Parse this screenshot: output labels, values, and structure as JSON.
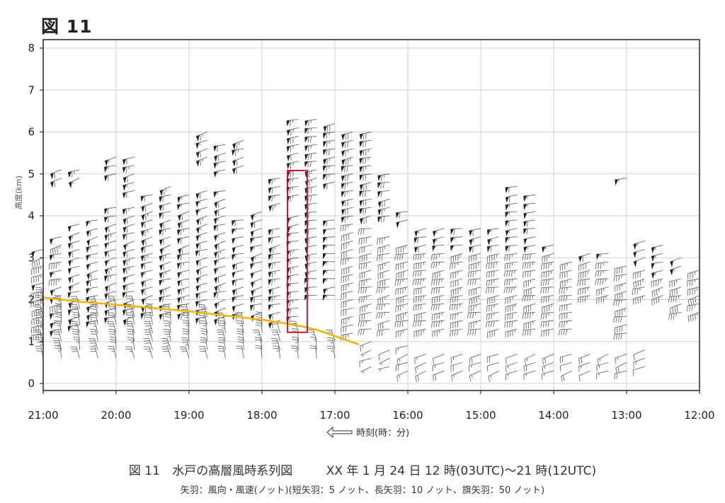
{
  "figure_label": "図 11",
  "caption": {
    "number": "図 11",
    "title": "水戸の高層風時系列図",
    "period": "XX 年 1 月 24 日 12 時(03UTC)〜21 時(12UTC)",
    "legend": "矢羽：風向・風速(ノット)(短矢羽：5 ノット、長矢羽：10 ノット、旗矢羽：50 ノット)"
  },
  "chart_data": {
    "type": "wind-barb time-height series",
    "title": "",
    "xlabel": "時刻(時：分)",
    "ylabel": "高度(km)",
    "x_ticks": [
      "21:00",
      "20:00",
      "19:00",
      "18:00",
      "17:00",
      "16:00",
      "15:00",
      "14:00",
      "13:00",
      "12:00"
    ],
    "x_range_hours": [
      21,
      12
    ],
    "y_ticks": [
      0,
      1,
      2,
      3,
      4,
      5,
      6,
      7,
      8
    ],
    "ylim": [
      0,
      8
    ],
    "grid": true,
    "barb_units": "knot",
    "series": [
      {
        "kind": "barbs",
        "region": "upper_westerly",
        "profiles": [
          {
            "time": 21.0,
            "alt_min": 1.2,
            "alt_max": 3.3,
            "dir": 255,
            "spd": 45
          },
          {
            "time": 20.75,
            "alt_min": 1.3,
            "alt_max": 3.6,
            "dir": 255,
            "spd": 50
          },
          {
            "time": 20.5,
            "alt_min": 1.4,
            "alt_max": 3.9,
            "dir": 255,
            "spd": 55
          },
          {
            "time": 20.25,
            "alt_min": 1.5,
            "alt_max": 4.0,
            "dir": 255,
            "spd": 55
          },
          {
            "time": 20.0,
            "alt_min": 1.6,
            "alt_max": 4.2,
            "dir": 255,
            "spd": 60
          },
          {
            "time": 19.75,
            "alt_min": 1.6,
            "alt_max": 4.3,
            "dir": 255,
            "spd": 60
          },
          {
            "time": 19.5,
            "alt_min": 1.7,
            "alt_max": 4.6,
            "dir": 255,
            "spd": 60
          },
          {
            "time": 19.25,
            "alt_min": 1.7,
            "alt_max": 4.7,
            "dir": 255,
            "spd": 60
          },
          {
            "time": 19.0,
            "alt_min": 1.7,
            "alt_max": 4.6,
            "dir": 255,
            "spd": 60
          },
          {
            "time": 18.75,
            "alt_min": 1.6,
            "alt_max": 4.6,
            "dir": 255,
            "spd": 60
          },
          {
            "time": 18.5,
            "alt_min": 1.6,
            "alt_max": 4.6,
            "dir": 255,
            "spd": 60
          },
          {
            "time": 18.25,
            "alt_min": 1.7,
            "alt_max": 4.0,
            "dir": 260,
            "spd": 55
          },
          {
            "time": 18.0,
            "alt_min": 1.7,
            "alt_max": 4.1,
            "dir": 255,
            "spd": 55
          },
          {
            "time": 17.75,
            "alt_min": 1.5,
            "alt_max": 3.8,
            "dir": 260,
            "spd": 60
          },
          {
            "time": 17.5,
            "alt_min": 1.6,
            "alt_max": 4.0,
            "dir": 260,
            "spd": 60
          },
          {
            "time": 17.25,
            "alt_min": 2.1,
            "alt_max": 4.3,
            "dir": 265,
            "spd": 55
          },
          {
            "time": 17.0,
            "alt_min": 2.1,
            "alt_max": 4.0,
            "dir": 265,
            "spd": 55
          }
        ]
      },
      {
        "kind": "barbs",
        "region": "lower_northerly",
        "profiles": [
          {
            "time": 21.0,
            "alt_min": 0.6,
            "alt_max": 2.0,
            "dir": 350,
            "spd": 30
          },
          {
            "time": 20.75,
            "alt_min": 0.6,
            "alt_max": 1.9,
            "dir": 350,
            "spd": 30
          },
          {
            "time": 20.5,
            "alt_min": 0.6,
            "alt_max": 1.9,
            "dir": 350,
            "spd": 30
          },
          {
            "time": 20.25,
            "alt_min": 0.6,
            "alt_max": 1.9,
            "dir": 350,
            "spd": 30
          },
          {
            "time": 20.0,
            "alt_min": 0.6,
            "alt_max": 1.8,
            "dir": 350,
            "spd": 30
          },
          {
            "time": 19.75,
            "alt_min": 0.6,
            "alt_max": 1.8,
            "dir": 350,
            "spd": 30
          },
          {
            "time": 19.5,
            "alt_min": 0.6,
            "alt_max": 1.7,
            "dir": 350,
            "spd": 30
          },
          {
            "time": 19.25,
            "alt_min": 0.6,
            "alt_max": 1.7,
            "dir": 350,
            "spd": 30
          },
          {
            "time": 19.0,
            "alt_min": 0.6,
            "alt_max": 1.6,
            "dir": 350,
            "spd": 30
          },
          {
            "time": 18.75,
            "alt_min": 0.6,
            "alt_max": 1.6,
            "dir": 350,
            "spd": 30
          },
          {
            "time": 18.5,
            "alt_min": 0.6,
            "alt_max": 1.5,
            "dir": 350,
            "spd": 30
          },
          {
            "time": 18.25,
            "alt_min": 0.6,
            "alt_max": 1.5,
            "dir": 350,
            "spd": 25
          },
          {
            "time": 18.0,
            "alt_min": 0.6,
            "alt_max": 1.4,
            "dir": 350,
            "spd": 25
          },
          {
            "time": 17.75,
            "alt_min": 0.6,
            "alt_max": 1.3,
            "dir": 350,
            "spd": 25
          },
          {
            "time": 17.5,
            "alt_min": 0.6,
            "alt_max": 1.2,
            "dir": 350,
            "spd": 25
          },
          {
            "time": 17.25,
            "alt_min": 0.6,
            "alt_max": 1.1,
            "dir": 350,
            "spd": 20
          },
          {
            "time": 17.0,
            "alt_min": 0.6,
            "alt_max": 1.0,
            "dir": 350,
            "spd": 20
          }
        ]
      },
      {
        "kind": "barbs",
        "region": "jet_strong_upper_left",
        "profiles": [
          {
            "time": 20.75,
            "alt_min": 4.9,
            "alt_max": 5.1,
            "dir": 250,
            "spd": 60
          },
          {
            "time": 20.5,
            "alt_min": 4.9,
            "alt_max": 5.2,
            "dir": 250,
            "spd": 60
          },
          {
            "time": 20.0,
            "alt_min": 5.0,
            "alt_max": 5.5,
            "dir": 255,
            "spd": 60
          },
          {
            "time": 19.75,
            "alt_min": 4.6,
            "alt_max": 5.4,
            "dir": 255,
            "spd": 60
          },
          {
            "time": 18.75,
            "alt_min": 5.4,
            "alt_max": 6.1,
            "dir": 255,
            "spd": 60
          },
          {
            "time": 18.5,
            "alt_min": 5.1,
            "alt_max": 5.8,
            "dir": 255,
            "spd": 60
          },
          {
            "time": 18.25,
            "alt_min": 5.2,
            "alt_max": 5.8,
            "dir": 255,
            "spd": 60
          },
          {
            "time": 17.75,
            "alt_min": 4.3,
            "alt_max": 5.0,
            "dir": 260,
            "spd": 65
          },
          {
            "time": 17.5,
            "alt_min": 4.5,
            "alt_max": 6.3,
            "dir": 260,
            "spd": 65
          },
          {
            "time": 17.25,
            "alt_min": 4.5,
            "alt_max": 6.4,
            "dir": 260,
            "spd": 65
          },
          {
            "time": 17.0,
            "alt_min": 4.8,
            "alt_max": 6.3,
            "dir": 260,
            "spd": 65
          },
          {
            "time": 16.75,
            "alt_min": 4.0,
            "alt_max": 6.1,
            "dir": 260,
            "spd": 70
          },
          {
            "time": 16.5,
            "alt_min": 4.0,
            "alt_max": 6.0,
            "dir": 260,
            "spd": 70
          },
          {
            "time": 16.25,
            "alt_min": 4.0,
            "alt_max": 5.0,
            "dir": 260,
            "spd": 65
          },
          {
            "time": 16.0,
            "alt_min": 3.9,
            "alt_max": 4.1,
            "dir": 260,
            "spd": 55
          }
        ]
      },
      {
        "kind": "barbs",
        "region": "jet_strong_right",
        "profiles": [
          {
            "time": 15.75,
            "alt_min": 3.3,
            "alt_max": 3.7,
            "dir": 260,
            "spd": 55
          },
          {
            "time": 15.5,
            "alt_min": 3.3,
            "alt_max": 3.7,
            "dir": 260,
            "spd": 55
          },
          {
            "time": 15.25,
            "alt_min": 3.3,
            "alt_max": 3.7,
            "dir": 260,
            "spd": 55
          },
          {
            "time": 15.0,
            "alt_min": 3.3,
            "alt_max": 3.7,
            "dir": 260,
            "spd": 55
          },
          {
            "time": 14.75,
            "alt_min": 3.3,
            "alt_max": 3.7,
            "dir": 260,
            "spd": 55
          },
          {
            "time": 14.5,
            "alt_min": 3.3,
            "alt_max": 4.8,
            "dir": 260,
            "spd": 55
          },
          {
            "time": 14.25,
            "alt_min": 3.3,
            "alt_max": 4.6,
            "dir": 260,
            "spd": 55
          },
          {
            "time": 14.0,
            "alt_min": 3.3,
            "alt_max": 3.4,
            "dir": 260,
            "spd": 55
          },
          {
            "time": 13.5,
            "alt_min": 3.1,
            "alt_max": 3.2,
            "dir": 260,
            "spd": 55
          },
          {
            "time": 13.25,
            "alt_min": 3.1,
            "alt_max": 3.2,
            "dir": 260,
            "spd": 55
          },
          {
            "time": 13.0,
            "alt_min": 4.9,
            "alt_max": 5.0,
            "dir": 255,
            "spd": 55
          },
          {
            "time": 12.75,
            "alt_min": 3.0,
            "alt_max": 3.4,
            "dir": 255,
            "spd": 55
          },
          {
            "time": 12.5,
            "alt_min": 2.7,
            "alt_max": 3.4,
            "dir": 255,
            "spd": 55
          },
          {
            "time": 12.25,
            "alt_min": 2.8,
            "alt_max": 3.0,
            "dir": 255,
            "spd": 55
          }
        ]
      },
      {
        "kind": "barbs",
        "region": "right_moderate",
        "profiles": [
          {
            "time": 16.75,
            "alt_min": 1.2,
            "alt_max": 3.8,
            "dir": 260,
            "spd": 35
          },
          {
            "time": 16.5,
            "alt_min": 1.3,
            "alt_max": 3.7,
            "dir": 260,
            "spd": 35
          },
          {
            "time": 16.25,
            "alt_min": 1.3,
            "alt_max": 3.6,
            "dir": 260,
            "spd": 35
          },
          {
            "time": 16.0,
            "alt_min": 1.3,
            "alt_max": 3.4,
            "dir": 260,
            "spd": 40
          },
          {
            "time": 15.75,
            "alt_min": 1.3,
            "alt_max": 3.2,
            "dir": 260,
            "spd": 40
          },
          {
            "time": 15.5,
            "alt_min": 1.3,
            "alt_max": 3.2,
            "dir": 260,
            "spd": 40
          },
          {
            "time": 15.25,
            "alt_min": 1.3,
            "alt_max": 3.2,
            "dir": 260,
            "spd": 40
          },
          {
            "time": 15.0,
            "alt_min": 1.3,
            "alt_max": 3.2,
            "dir": 260,
            "spd": 40
          },
          {
            "time": 14.75,
            "alt_min": 1.3,
            "alt_max": 3.2,
            "dir": 260,
            "spd": 40
          },
          {
            "time": 14.5,
            "alt_min": 1.3,
            "alt_max": 3.2,
            "dir": 260,
            "spd": 40
          },
          {
            "time": 14.25,
            "alt_min": 1.3,
            "alt_max": 3.1,
            "dir": 260,
            "spd": 40
          },
          {
            "time": 14.0,
            "alt_min": 1.3,
            "alt_max": 3.1,
            "dir": 260,
            "spd": 40
          },
          {
            "time": 13.75,
            "alt_min": 1.3,
            "alt_max": 2.9,
            "dir": 260,
            "spd": 40
          },
          {
            "time": 13.5,
            "alt_min": 2.1,
            "alt_max": 2.9,
            "dir": 260,
            "spd": 40
          },
          {
            "time": 13.25,
            "alt_min": 2.1,
            "alt_max": 2.9,
            "dir": 260,
            "spd": 40
          },
          {
            "time": 13.0,
            "alt_min": 1.2,
            "alt_max": 2.8,
            "dir": 260,
            "spd": 40
          },
          {
            "time": 12.75,
            "alt_min": 2.1,
            "alt_max": 2.7,
            "dir": 255,
            "spd": 40
          },
          {
            "time": 12.5,
            "alt_min": 2.1,
            "alt_max": 2.6,
            "dir": 255,
            "spd": 40
          },
          {
            "time": 12.25,
            "alt_min": 1.7,
            "alt_max": 2.5,
            "dir": 255,
            "spd": 40
          },
          {
            "time": 12.0,
            "alt_min": 1.7,
            "alt_max": 2.7,
            "dir": 255,
            "spd": 40
          }
        ]
      },
      {
        "kind": "barbs",
        "region": "right_low_weak",
        "profiles": [
          {
            "time": 16.5,
            "alt_min": 0.4,
            "alt_max": 1.0,
            "dir": 250,
            "spd": 10
          },
          {
            "time": 16.25,
            "alt_min": 0.4,
            "alt_max": 0.9,
            "dir": 250,
            "spd": 10
          },
          {
            "time": 16.0,
            "alt_min": 0.3,
            "alt_max": 0.9,
            "dir": 250,
            "spd": 15
          },
          {
            "time": 15.75,
            "alt_min": 0.3,
            "alt_max": 0.8,
            "dir": 250,
            "spd": 15
          },
          {
            "time": 15.5,
            "alt_min": 0.3,
            "alt_max": 0.8,
            "dir": 250,
            "spd": 15
          },
          {
            "time": 15.25,
            "alt_min": 0.3,
            "alt_max": 0.8,
            "dir": 250,
            "spd": 15
          },
          {
            "time": 15.0,
            "alt_min": 0.3,
            "alt_max": 0.8,
            "dir": 250,
            "spd": 15
          },
          {
            "time": 14.75,
            "alt_min": 0.3,
            "alt_max": 0.8,
            "dir": 250,
            "spd": 15
          },
          {
            "time": 14.5,
            "alt_min": 0.3,
            "alt_max": 0.8,
            "dir": 250,
            "spd": 15
          },
          {
            "time": 14.25,
            "alt_min": 0.3,
            "alt_max": 0.8,
            "dir": 250,
            "spd": 15
          },
          {
            "time": 14.0,
            "alt_min": 0.3,
            "alt_max": 0.8,
            "dir": 250,
            "spd": 15
          },
          {
            "time": 13.75,
            "alt_min": 0.3,
            "alt_max": 0.8,
            "dir": 250,
            "spd": 15
          },
          {
            "time": 13.5,
            "alt_min": 0.3,
            "alt_max": 0.8,
            "dir": 250,
            "spd": 15
          },
          {
            "time": 13.25,
            "alt_min": 0.3,
            "alt_max": 0.8,
            "dir": 250,
            "spd": 15
          },
          {
            "time": 13.0,
            "alt_min": 0.3,
            "alt_max": 0.8,
            "dir": 250,
            "spd": 15
          },
          {
            "time": 12.75,
            "alt_min": 0.4,
            "alt_max": 0.9,
            "dir": 250,
            "spd": 15
          }
        ]
      },
      {
        "kind": "line",
        "name": "",
        "color": "#f5b400",
        "points": [
          {
            "time": 21.0,
            "alt": 2.05
          },
          {
            "time": 20.5,
            "alt": 1.95
          },
          {
            "time": 20.0,
            "alt": 1.88
          },
          {
            "time": 19.5,
            "alt": 1.8
          },
          {
            "time": 19.0,
            "alt": 1.72
          },
          {
            "time": 18.5,
            "alt": 1.62
          },
          {
            "time": 18.0,
            "alt": 1.52
          },
          {
            "time": 17.5,
            "alt": 1.38
          },
          {
            "time": 17.25,
            "alt": 1.28
          },
          {
            "time": 17.0,
            "alt": 1.13
          },
          {
            "time": 16.67,
            "alt": 0.93
          }
        ]
      },
      {
        "kind": "box",
        "color": "#d0021b",
        "time_range": [
          17.65,
          17.38
        ],
        "alt_range": [
          1.22,
          5.08
        ]
      }
    ]
  }
}
